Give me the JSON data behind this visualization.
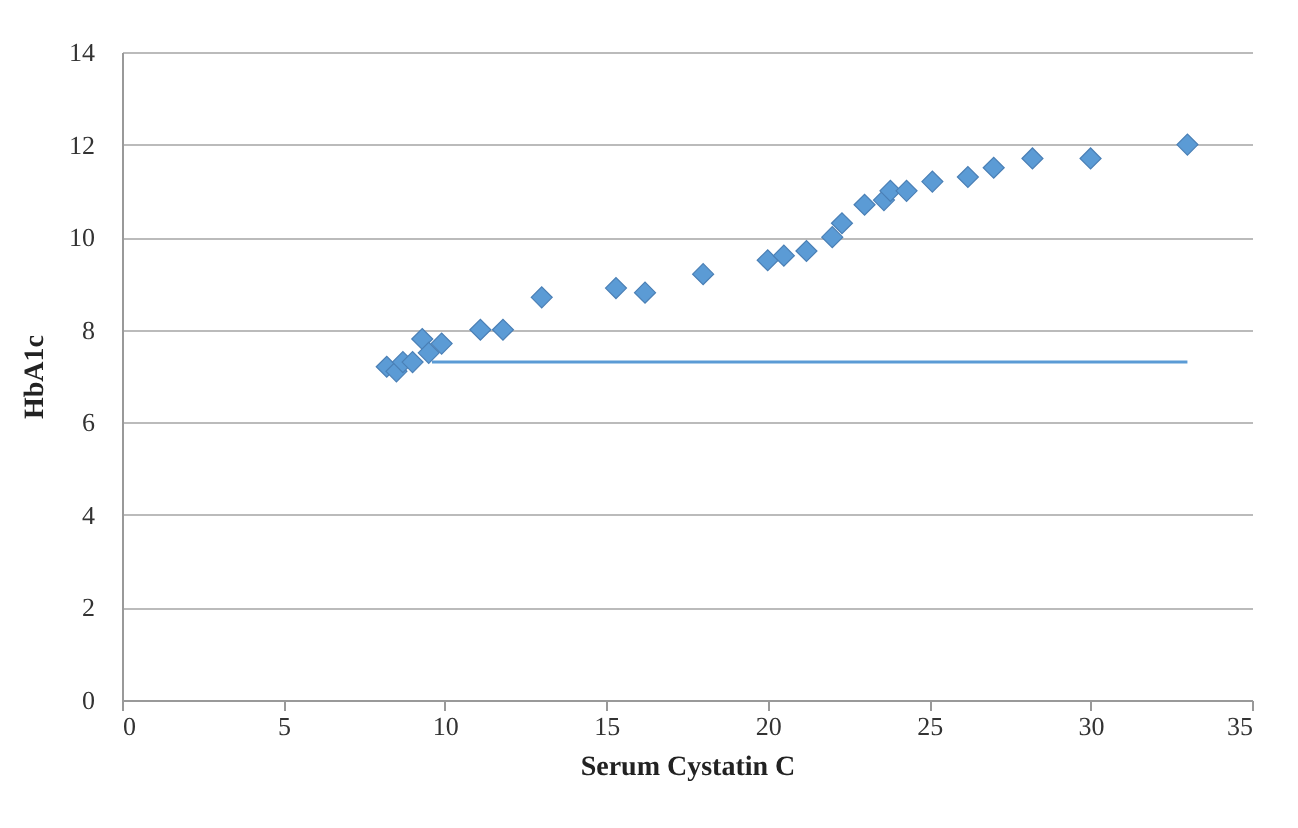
{
  "chart_data": {
    "type": "scatter",
    "xlabel": "Serum Cystatin C",
    "ylabel": "HbA1c",
    "xlim": [
      0,
      35
    ],
    "xticks": [
      0,
      5,
      10,
      15,
      20,
      25,
      30,
      35
    ],
    "ylim": [
      0,
      14
    ],
    "yticks": [
      0,
      2,
      4,
      6,
      8,
      10,
      12,
      14
    ],
    "grid": "y",
    "series": [
      {
        "marker": "diamond",
        "color": "#5b9bd5",
        "x": [
          8.2,
          8.5,
          8.7,
          9.0,
          9.3,
          9.5,
          9.9,
          11.1,
          11.8,
          13.0,
          15.3,
          16.2,
          18.0,
          20.0,
          20.5,
          21.2,
          22.0,
          22.3,
          23.0,
          23.6,
          23.8,
          24.3,
          25.1,
          26.2,
          27.0,
          28.2,
          30.0,
          33.0
        ],
        "values": [
          7.2,
          7.1,
          7.3,
          7.3,
          7.8,
          7.5,
          7.7,
          8.0,
          8.0,
          8.7,
          8.9,
          8.8,
          9.2,
          9.5,
          9.6,
          9.7,
          10.0,
          10.3,
          10.7,
          10.8,
          11.0,
          11.0,
          11.2,
          11.3,
          11.5,
          11.7,
          11.7,
          12.0
        ]
      },
      {
        "type": "line",
        "color": "#5b9bd5",
        "x": [
          9.6,
          33.0
        ],
        "values": [
          7.3,
          7.3
        ]
      }
    ]
  }
}
